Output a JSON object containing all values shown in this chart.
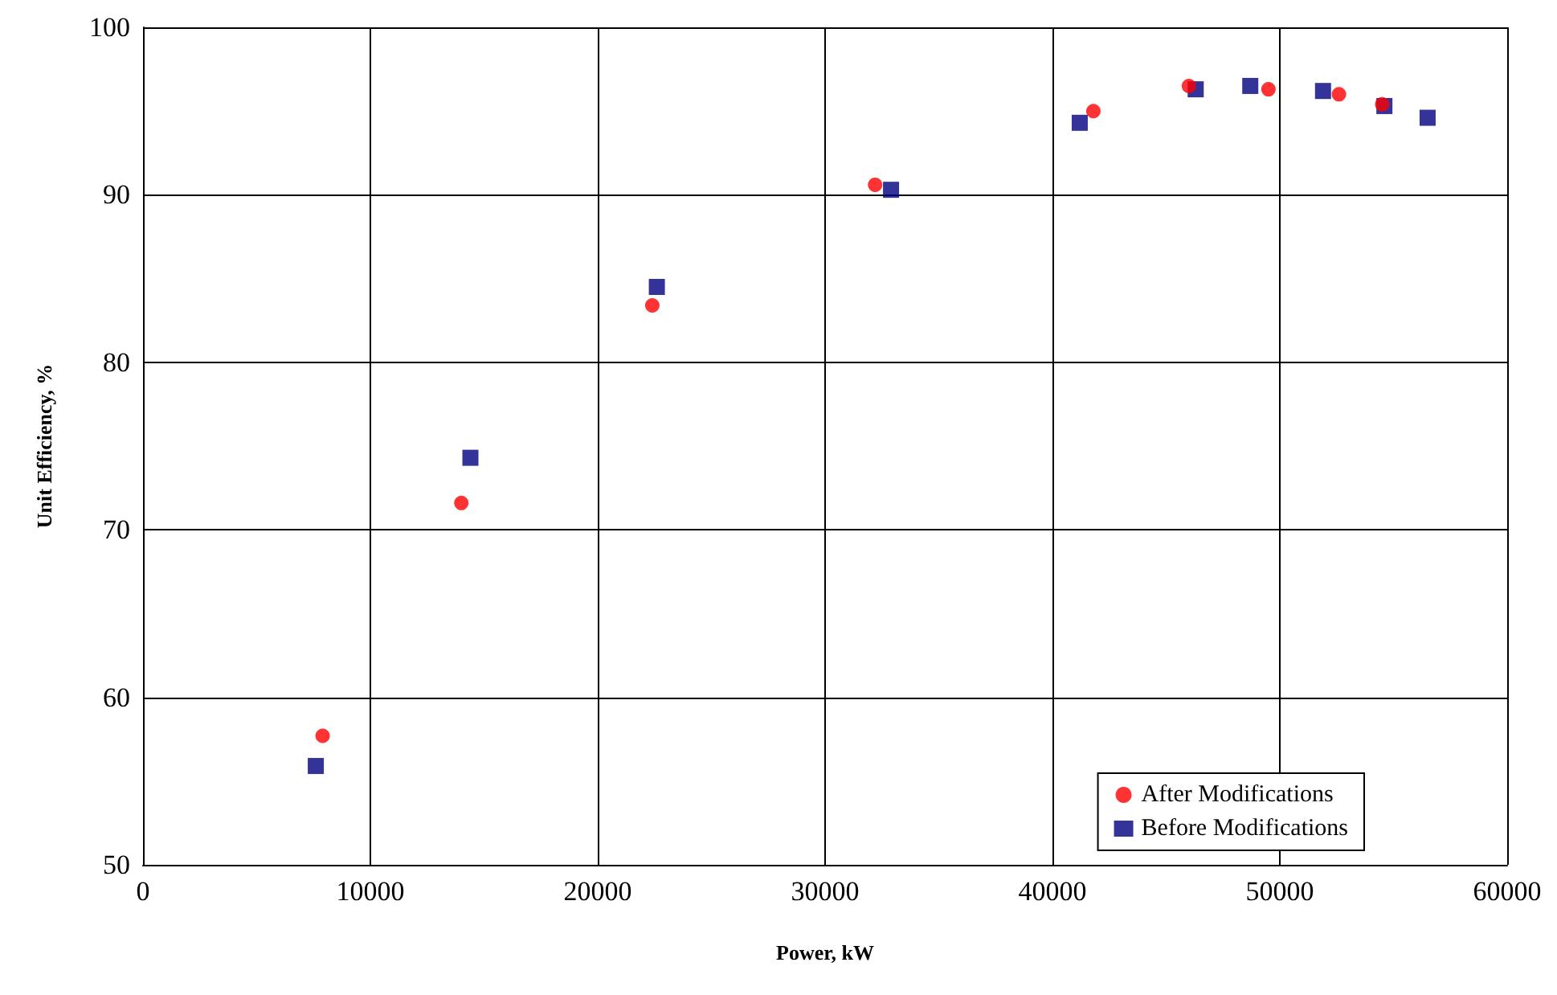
{
  "chart_data": {
    "type": "scatter",
    "xlabel": "Power, kW",
    "ylabel": "Unit Efficiency, %",
    "xlim": [
      0,
      60000
    ],
    "xticks": [
      0,
      10000,
      20000,
      30000,
      40000,
      50000,
      60000
    ],
    "ylim": [
      50,
      100
    ],
    "yticks": [
      50,
      60,
      70,
      80,
      90,
      100
    ],
    "grid": true,
    "legend": "bottom right",
    "series": [
      {
        "name": "After Modifications",
        "color": "#ff0000",
        "marker": "circle",
        "x": [
          7900,
          14000,
          22400,
          32200,
          41800,
          46000,
          49500,
          52600,
          54500
        ],
        "values": [
          57.7,
          71.6,
          83.4,
          90.6,
          95.0,
          96.5,
          96.3,
          96.0,
          95.4
        ]
      },
      {
        "name": "Before Modifications",
        "color": "#000080",
        "marker": "square",
        "x": [
          7600,
          14400,
          22600,
          32900,
          41200,
          46300,
          48700,
          51900,
          54600,
          56500
        ],
        "values": [
          55.9,
          74.3,
          84.5,
          90.3,
          94.3,
          96.3,
          96.5,
          96.2,
          95.3,
          94.6
        ]
      }
    ]
  }
}
